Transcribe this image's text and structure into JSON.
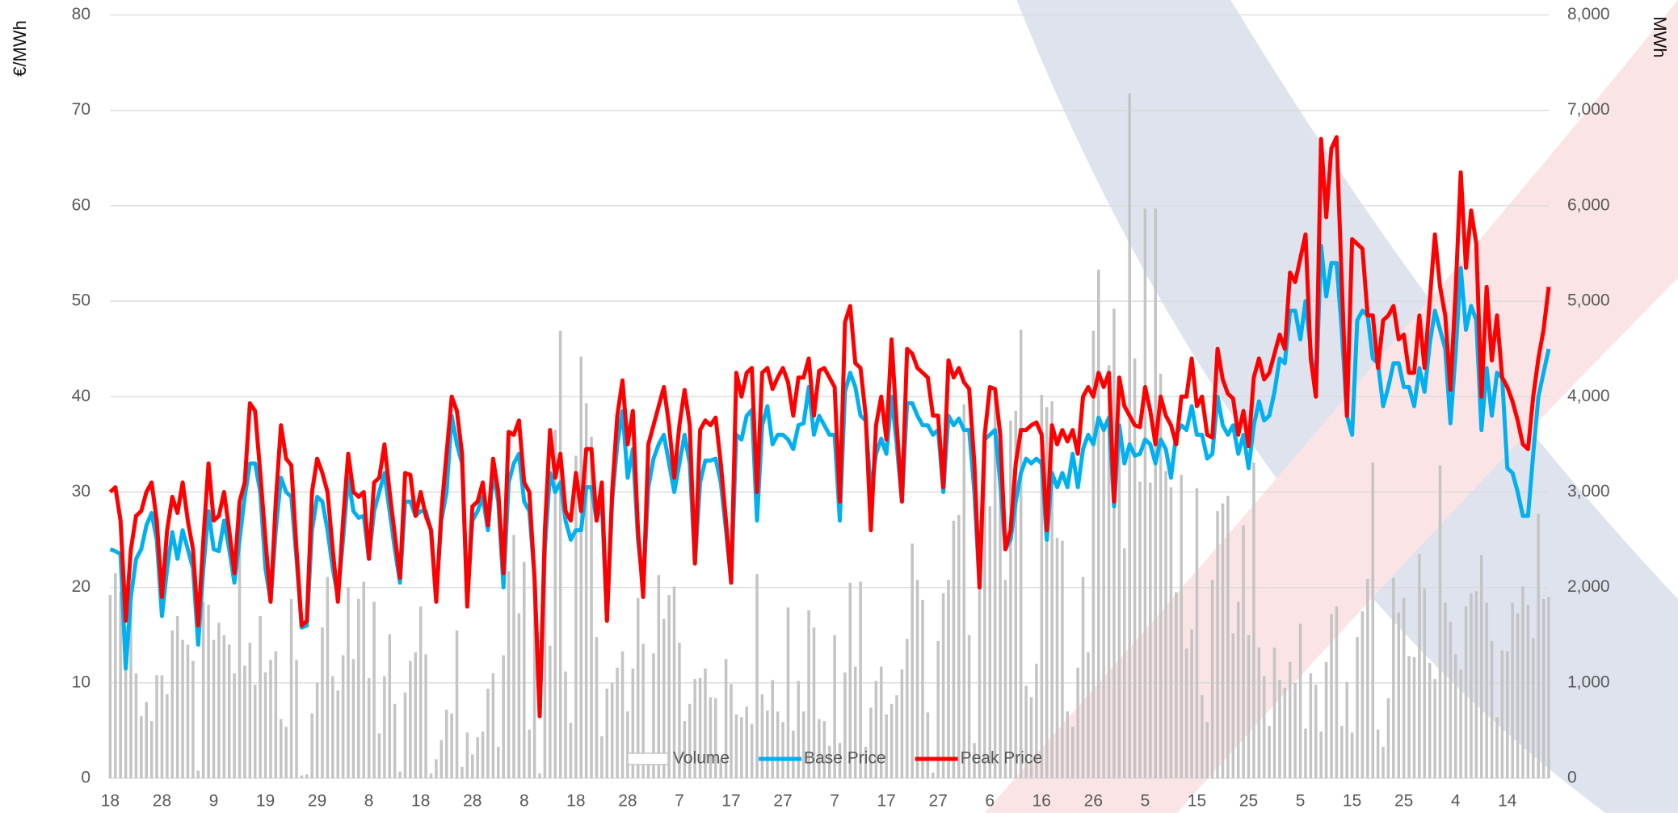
{
  "chart_data": {
    "type": "combo",
    "ylabel": "€/MWh",
    "y2label": "MWh",
    "ylim": [
      0,
      80
    ],
    "yticks": [
      0,
      10,
      20,
      30,
      40,
      50,
      60,
      70,
      80
    ],
    "y2lim": [
      0,
      8000
    ],
    "y2ticks": [
      0,
      {
        "value": 1000,
        "label": "1,000"
      },
      {
        "value": 2000,
        "label": "2,000"
      },
      {
        "value": 3000,
        "label": "3,000"
      },
      {
        "value": 4000,
        "label": "4,000"
      },
      {
        "value": 5000,
        "label": "5,000"
      },
      {
        "value": 6000,
        "label": "6,000"
      },
      {
        "value": 7000,
        "label": "7,000"
      },
      {
        "value": 8000,
        "label": "8,000"
      }
    ],
    "grid": true,
    "legend": "bottom",
    "categories": [
      "18",
      null,
      null,
      null,
      null,
      null,
      null,
      null,
      null,
      null,
      "28",
      null,
      null,
      null,
      null,
      null,
      null,
      null,
      null,
      null,
      "9",
      null,
      null,
      null,
      null,
      null,
      null,
      null,
      null,
      null,
      "19",
      null,
      null,
      null,
      null,
      null,
      null,
      null,
      null,
      null,
      "29",
      null,
      null,
      null,
      null,
      null,
      null,
      null,
      null,
      null,
      "8",
      null,
      null,
      null,
      null,
      null,
      null,
      null,
      null,
      null,
      "18",
      null,
      null,
      null,
      null,
      null,
      null,
      null,
      null,
      null,
      "28",
      null,
      null,
      null,
      null,
      null,
      null,
      null,
      null,
      null,
      "8",
      null,
      null,
      null,
      null,
      null,
      null,
      null,
      null,
      null,
      "18",
      null,
      null,
      null,
      null,
      null,
      null,
      null,
      null,
      null,
      "28",
      null,
      null,
      null,
      null,
      null,
      null,
      null,
      null,
      null,
      "7",
      null,
      null,
      null,
      null,
      null,
      null,
      null,
      null,
      null,
      "17",
      null,
      null,
      null,
      null,
      null,
      null,
      null,
      null,
      null,
      "27",
      null,
      null,
      null,
      null,
      null,
      null,
      null,
      null,
      null,
      "7",
      null,
      null,
      null,
      null,
      null,
      null,
      null,
      null,
      null,
      "17",
      null,
      null,
      null,
      null,
      null,
      null,
      null,
      null,
      null,
      "27",
      null,
      null,
      null,
      null,
      null,
      null,
      null,
      null,
      null,
      "6",
      null,
      null,
      null,
      null,
      null,
      null,
      null,
      null,
      null,
      "16",
      null,
      null,
      null,
      null,
      null,
      null,
      null,
      null,
      null,
      "26",
      null,
      null,
      null,
      null,
      null,
      null,
      null,
      null,
      null,
      "5",
      null,
      null,
      null,
      null,
      null,
      null,
      null,
      null,
      null,
      "15",
      null,
      null,
      null,
      null,
      null,
      null,
      null,
      null,
      null,
      "25",
      null,
      null,
      null,
      null,
      null,
      null,
      null,
      null,
      null,
      "5",
      null,
      null,
      null,
      null,
      null,
      null,
      null,
      null,
      null,
      "15",
      null,
      null,
      null,
      null,
      null,
      null,
      null,
      null,
      null,
      "25",
      null,
      null,
      null,
      null,
      null,
      null,
      null,
      null,
      null,
      "4",
      null,
      null,
      null,
      null,
      null,
      null,
      null,
      null,
      null,
      "14",
      null,
      null,
      null,
      null,
      null,
      null,
      null,
      null
    ],
    "series": [
      {
        "name": "Volume",
        "type": "bar",
        "axis": "y2",
        "color": "#c4c4c4",
        "values": [
          1920,
          2150,
          1950,
          1600,
          2000,
          1100,
          650,
          800,
          600,
          1080,
          1080,
          880,
          1550,
          1700,
          1450,
          1400,
          1230,
          80,
          1850,
          1820,
          1450,
          1630,
          1500,
          1400,
          1100,
          2550,
          1180,
          1420,
          980,
          1700,
          1110,
          1240,
          1330,
          620,
          540,
          1880,
          1240,
          30,
          40,
          680,
          1000,
          1580,
          2110,
          1070,
          920,
          1290,
          2000,
          1250,
          1880,
          2060,
          1050,
          1850,
          470,
          1070,
          1510,
          780,
          70,
          900,
          1230,
          1320,
          1800,
          1300,
          50,
          200,
          400,
          720,
          680,
          1550,
          120,
          480,
          250,
          430,
          490,
          940,
          1100,
          330,
          1290,
          2170,
          2550,
          1730,
          2270,
          510,
          2000,
          50,
          2360,
          1390,
          3650,
          4690,
          1120,
          580,
          3380,
          4420,
          3930,
          3580,
          1480,
          440,
          940,
          1000,
          1160,
          1330,
          700,
          1150,
          1890,
          1410,
          200,
          1310,
          2130,
          1670,
          1920,
          2010,
          1420,
          600,
          780,
          1040,
          1050,
          1150,
          850,
          840,
          200,
          1250,
          990,
          670,
          640,
          750,
          570,
          2140,
          880,
          710,
          1030,
          700,
          590,
          1790,
          500,
          1020,
          700,
          1760,
          1580,
          620,
          600,
          340,
          1500,
          370,
          1110,
          2050,
          1170,
          2060,
          330,
          740,
          1020,
          1170,
          670,
          780,
          870,
          1140,
          1460,
          2460,
          2080,
          1870,
          690,
          60,
          1440,
          1940,
          2080,
          2700,
          2760,
          3920,
          1500,
          370,
          2050,
          3350,
          2850,
          4050,
          3220,
          2080,
          3750,
          3850,
          4700,
          970,
          850,
          1200,
          4020,
          3890,
          3950,
          2520,
          2490,
          700,
          540,
          1160,
          2110,
          1320,
          4690,
          5330,
          3720,
          4330,
          4920,
          3590,
          2410,
          7180,
          4400,
          3110,
          5970,
          3100,
          5970,
          4240,
          3220,
          3050,
          1950,
          3180,
          1360,
          1560,
          3040,
          870,
          590,
          2080,
          2800,
          2880,
          2960,
          1520,
          1850,
          2650,
          1500,
          3310,
          1370,
          1070,
          550,
          1370,
          1030,
          950,
          1220,
          1000,
          1620,
          520,
          1100,
          980,
          490,
          1220,
          1720,
          1800,
          550,
          1010,
          480,
          1480,
          1750,
          2090,
          3310,
          510,
          330,
          840,
          2100,
          1740,
          1890,
          1280,
          1270,
          2350,
          1990,
          1210,
          1040,
          3280,
          1840,
          1640,
          1300,
          1140,
          1800,
          1940,
          1960,
          2340,
          1840,
          1440,
          640,
          1340,
          1330,
          1840,
          1730,
          2010,
          1820,
          1470,
          2770,
          1880,
          1900
        ]
      },
      {
        "name": "Base Price",
        "type": "line",
        "color": "#00b0f0",
        "values": [
          24,
          23.8,
          23.5,
          11.5,
          19,
          23,
          24,
          26.5,
          27.8,
          25,
          17,
          22,
          25.8,
          23,
          26,
          24,
          22,
          14,
          22,
          28,
          24,
          23.8,
          27,
          24,
          20.5,
          25,
          29.5,
          33,
          33,
          30,
          22,
          18.5,
          26,
          31.5,
          30,
          29.5,
          23,
          15.8,
          16,
          26,
          29.5,
          29,
          26,
          22,
          19,
          25,
          31.5,
          28,
          27.3,
          27.5,
          23,
          28,
          30,
          32,
          28,
          24,
          20.5,
          29,
          29,
          27.5,
          28,
          28,
          26,
          19,
          27,
          30,
          38,
          35,
          33,
          18.5,
          27,
          28,
          29.5,
          26,
          32,
          29,
          20,
          31,
          33,
          34,
          29,
          28,
          21,
          7,
          24,
          32,
          30,
          31,
          27,
          25,
          26,
          26,
          30.5,
          30.5,
          27,
          29,
          16.5,
          29,
          35,
          38.5,
          31.5,
          34.5,
          25,
          20,
          30.5,
          33.5,
          35,
          36,
          33,
          30,
          33,
          36,
          33,
          22.5,
          31,
          33.3,
          33.3,
          33.5,
          31,
          26,
          20.5,
          36,
          35.5,
          38,
          38.6,
          27,
          37,
          39,
          35,
          36,
          36,
          35.5,
          34.5,
          37,
          37.2,
          41,
          36,
          38,
          37,
          36,
          36,
          27,
          40.5,
          42.5,
          41,
          38,
          37.5,
          30,
          34,
          35.6,
          34,
          40,
          35,
          29,
          39.3,
          39.3,
          38,
          37,
          37,
          36,
          36.5,
          30,
          38,
          37,
          37.7,
          36.5,
          36.5,
          30,
          20,
          35.5,
          36,
          36.5,
          31,
          24,
          25,
          29,
          32,
          33.5,
          33,
          33.5,
          33,
          25,
          32,
          30.5,
          32,
          30.5,
          34,
          30.5,
          34.5,
          36,
          35,
          37.8,
          36.5,
          37.8,
          28.5,
          37,
          33,
          35,
          33.8,
          34,
          35.5,
          35,
          33,
          35.5,
          34.5,
          31.5,
          36,
          37,
          36.5,
          39,
          36,
          36,
          33.5,
          34,
          40,
          37,
          36,
          37,
          34,
          36,
          32.5,
          37,
          39.5,
          37.5,
          38,
          40.5,
          44,
          43.5,
          49,
          49,
          46,
          50,
          45,
          40,
          55.8,
          50.5,
          54,
          54,
          47,
          38,
          36,
          48,
          49,
          48.5,
          44,
          43.5,
          39,
          41,
          43.5,
          43.5,
          41,
          41,
          39,
          43,
          40.5,
          45.5,
          49,
          47,
          45,
          37.2,
          44.5,
          53.5,
          47,
          49.5,
          48,
          36.5,
          43,
          38,
          42.5,
          42,
          32.5,
          32,
          30,
          27.5,
          27.5,
          34,
          40,
          42.5,
          45
        ]
      },
      {
        "name": "Peak Price",
        "type": "line",
        "color": "#ff0000",
        "values": [
          30,
          30.5,
          27,
          16.5,
          24,
          27.5,
          28,
          30,
          31,
          27,
          19,
          26,
          29.5,
          27.8,
          31,
          27,
          24,
          16,
          25,
          33,
          27,
          27.5,
          30,
          26,
          21.5,
          29,
          31,
          39.3,
          38.5,
          32,
          25,
          18.5,
          29,
          37,
          33.5,
          32.8,
          24,
          16,
          16.5,
          30,
          33.5,
          32,
          30,
          24,
          18.5,
          27,
          34,
          30,
          29.5,
          30,
          23,
          31,
          31.5,
          35,
          30,
          25.5,
          21,
          32,
          31.8,
          27.5,
          30,
          27.5,
          26,
          18.5,
          28,
          34,
          40,
          38.5,
          34,
          18,
          28.5,
          29,
          31,
          26.5,
          33.5,
          30,
          21.5,
          36.3,
          36,
          37.5,
          31,
          30,
          21,
          6.5,
          26,
          36.5,
          31.5,
          34,
          28,
          27,
          32,
          28,
          34.5,
          34.5,
          27,
          31,
          16.5,
          30,
          38,
          41.7,
          35,
          38.5,
          26,
          19,
          35,
          37,
          39,
          41,
          37,
          31.5,
          37,
          40.7,
          37,
          22.5,
          36.5,
          37.5,
          37,
          37.8,
          33,
          27,
          20.5,
          42.5,
          40,
          42.5,
          43,
          30,
          42.5,
          43,
          40.8,
          42,
          43,
          41.5,
          38,
          42,
          42,
          44,
          38,
          42.7,
          43,
          42,
          41,
          29,
          47.8,
          49.5,
          43.5,
          43,
          38,
          26,
          37,
          40,
          35.5,
          46,
          37,
          29,
          45,
          44.5,
          43,
          42.5,
          42,
          38,
          38,
          30.5,
          43.8,
          42,
          43,
          41.5,
          40.8,
          33,
          20,
          36,
          41,
          40.8,
          36,
          24,
          26,
          33,
          36.5,
          36.5,
          37,
          37.3,
          36,
          26,
          37,
          35,
          36.5,
          35.3,
          36.5,
          34,
          40,
          41,
          40,
          42.5,
          41,
          42.5,
          29,
          42,
          39,
          38,
          37,
          36.8,
          41,
          38.5,
          35,
          40,
          38,
          37,
          35,
          40,
          40,
          44,
          39,
          40,
          36,
          35.7,
          45,
          41.8,
          40.3,
          39.8,
          36,
          38.5,
          34.8,
          42,
          44,
          41.8,
          42.5,
          44.5,
          46.5,
          45,
          53,
          52,
          54.5,
          57,
          44,
          40,
          67,
          58.8,
          66,
          67.2,
          52,
          38,
          56.5,
          56,
          55.5,
          48.5,
          48.5,
          43,
          48,
          48.5,
          49.5,
          46,
          46.5,
          42.5,
          42.5,
          48.5,
          43,
          50,
          57,
          51.5,
          48.5,
          40.7,
          51,
          63.5,
          53.5,
          59.5,
          56,
          40,
          51.5,
          43.8,
          48.5,
          42,
          41,
          39.5,
          37.5,
          35,
          34.5,
          40,
          44,
          47,
          51.5
        ]
      }
    ]
  }
}
